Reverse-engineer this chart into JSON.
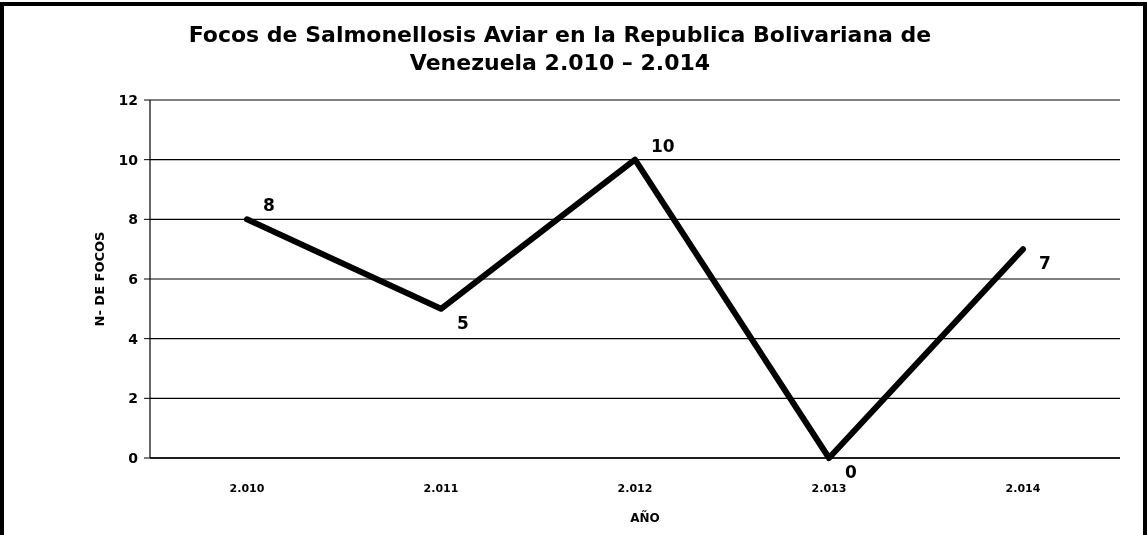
{
  "chart_data": {
    "type": "line",
    "title": "Focos de Salmonellosis Aviar en la Republica Bolivariana de Venezuela 2.010 – 2.014",
    "xlabel": "AÑO",
    "ylabel": "N- DE FOCOS",
    "categories": [
      "2.010",
      "2.011",
      "2.012",
      "2.013",
      "2.014"
    ],
    "series": [
      {
        "color": "#000000",
        "values": [
          8,
          5,
          10,
          0,
          7
        ]
      }
    ],
    "ylim": [
      0,
      12
    ],
    "yticks": [
      0,
      2,
      4,
      6,
      8,
      10,
      12
    ],
    "grid": "y",
    "data_labels": true,
    "marker": "none",
    "line_style": "solid"
  }
}
